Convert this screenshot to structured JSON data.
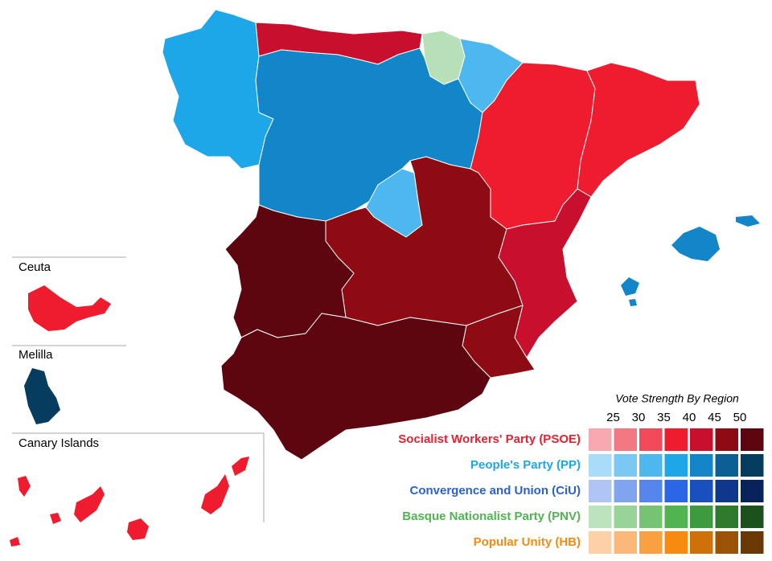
{
  "insets": [
    "Ceuta",
    "Melilla",
    "Canary Islands"
  ],
  "legend": {
    "title": "Vote Strength By Region",
    "ticks": [
      25,
      30,
      35,
      40,
      45,
      50
    ],
    "parties": [
      {
        "name": "Socialist Workers' Party (PSOE)",
        "color": "#e8202f",
        "shades": [
          "#f7a8b0",
          "#f47882",
          "#f04a58",
          "#ee1c2e",
          "#c8102e",
          "#8f0b14",
          "#5e0610"
        ]
      },
      {
        "name": "People's Party (PP)",
        "color": "#1ea7e8",
        "shades": [
          "#a8dcf8",
          "#7cc8f4",
          "#4db8f0",
          "#1ea7e8",
          "#1286c8",
          "#0b5f94",
          "#063d5e"
        ]
      },
      {
        "name": "Convergence and Union (CiU)",
        "color": "#2a5fd6",
        "shades": [
          "#b0c4f4",
          "#80a4f0",
          "#5585ec",
          "#2a66e6",
          "#1a4fc0",
          "#0f388c",
          "#08235c"
        ]
      },
      {
        "name": "Basque Nationalist Party (PNV)",
        "color": "#50b450",
        "shades": [
          "#bce4bc",
          "#98d498",
          "#74c474",
          "#50b450",
          "#3e9a3e",
          "#2c7a2c",
          "#1c501c"
        ]
      },
      {
        "name": "Popular Unity (HB)",
        "color": "#f88a10",
        "shades": [
          "#fdd0a8",
          "#fbb878",
          "#f9a040",
          "#f88a10",
          "#d07008",
          "#9c5206",
          "#6a3804"
        ]
      }
    ]
  }
}
